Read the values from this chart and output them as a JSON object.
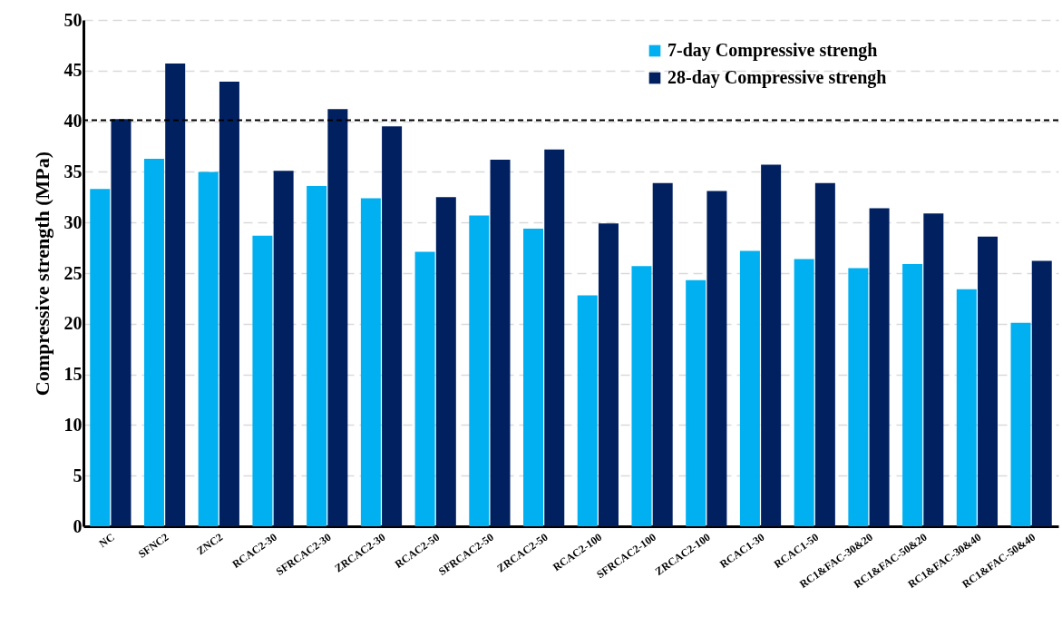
{
  "chart_data": {
    "type": "bar",
    "ylabel": "Compressive strength (MPa)",
    "categories": [
      "NC",
      "SFNC2",
      "ZNC2",
      "RCAC2-30",
      "SFRCAC2-30",
      "ZRCAC2-30",
      "RCAC2-50",
      "SFRCAC2-50",
      "ZRCAC2-50",
      "RCAC2-100",
      "SFRCAC2-100",
      "ZRCAC2-100",
      "RCAC1-30",
      "RCAC1-50",
      "RC1&FAC-30&20",
      "RC1&FAC-50&20",
      "RC1&FAC-30&40",
      "RC1&FAC-50&40"
    ],
    "series": [
      {
        "name": "7-day Compressive strengh",
        "color": "#00b0f0",
        "values": [
          33.3,
          36.3,
          35.0,
          28.7,
          33.6,
          32.4,
          27.1,
          30.7,
          29.4,
          22.8,
          25.7,
          24.3,
          27.2,
          26.4,
          25.5,
          25.9,
          23.4,
          20.1
        ]
      },
      {
        "name": "28-day Compressive strengh",
        "color": "#002060",
        "values": [
          40.2,
          45.7,
          43.9,
          35.1,
          41.2,
          39.5,
          32.5,
          36.2,
          37.2,
          29.9,
          33.9,
          33.1,
          35.7,
          33.9,
          31.4,
          30.9,
          28.6,
          26.2
        ]
      }
    ],
    "ylim": [
      0,
      50
    ],
    "yticks": [
      0,
      5,
      10,
      15,
      20,
      25,
      30,
      35,
      40,
      45,
      50
    ],
    "grid": "y",
    "legend": "top right",
    "ref_lines": [
      {
        "axis": "y",
        "value": 40.1,
        "color": "#000000",
        "line_style": "dashed"
      }
    ]
  }
}
